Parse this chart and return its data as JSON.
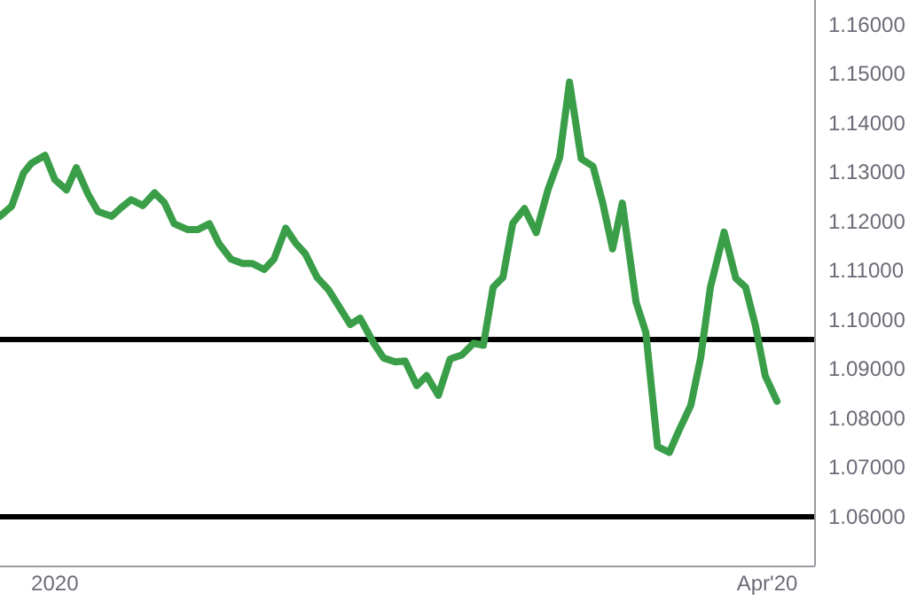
{
  "chart_data": {
    "type": "line",
    "xlim": [
      "2019-12-25",
      "2020-04-07"
    ],
    "ylim": [
      1.05,
      1.165
    ],
    "xticks": [
      {
        "value": "2020-01-01",
        "label": "2020"
      },
      {
        "value": "2020-04-01",
        "label": "Apr'20"
      }
    ],
    "yticks": [
      {
        "value": 1.06,
        "label": "1.06000"
      },
      {
        "value": 1.07,
        "label": "1.07000"
      },
      {
        "value": 1.08,
        "label": "1.08000"
      },
      {
        "value": 1.09,
        "label": "1.09000"
      },
      {
        "value": 1.1,
        "label": "1.10000"
      },
      {
        "value": 1.11,
        "label": "1.11000"
      },
      {
        "value": 1.12,
        "label": "1.12000"
      },
      {
        "value": 1.13,
        "label": "1.13000"
      },
      {
        "value": 1.14,
        "label": "1.14000"
      },
      {
        "value": 1.15,
        "label": "1.15000"
      },
      {
        "value": 1.16,
        "label": "1.16000"
      }
    ],
    "grid": false,
    "marker": "none",
    "line_style": "solid",
    "ref_lines": [
      {
        "axis": "y",
        "value": 1.096,
        "color": "#000000"
      },
      {
        "axis": "y",
        "value": 1.06,
        "color": "#000000"
      }
    ],
    "x": [
      "2019-12-25T00:00",
      "2019-12-26T12:00",
      "2019-12-28T00:00",
      "2019-12-29T00:00",
      "2019-12-30T18:00",
      "2020-01-01T00:00",
      "2020-01-02T12:00",
      "2020-01-03T18:00",
      "2020-01-05T06:00",
      "2020-01-06T12:00",
      "2020-01-08T06:00",
      "2020-01-09T12:00",
      "2020-01-10T18:00",
      "2020-01-12T06:00",
      "2020-01-13T18:00",
      "2020-01-15T00:00",
      "2020-01-16T06:00",
      "2020-01-18T00:00",
      "2020-01-19T06:00",
      "2020-01-20T18:00",
      "2020-01-22T00:00",
      "2020-01-23T12:00",
      "2020-01-25T00:00",
      "2020-01-26T06:00",
      "2020-01-27T18:00",
      "2020-01-29T00:00",
      "2020-01-30T12:00",
      "2020-01-31T18:00",
      "2020-02-02T00:00",
      "2020-02-03T12:00",
      "2020-02-05T00:00",
      "2020-02-07T18:00",
      "2020-02-09T00:00",
      "2020-02-10T18:00",
      "2020-02-12T00:00",
      "2020-02-13T12:00",
      "2020-02-14T18:00",
      "2020-02-16T06:00",
      "2020-02-17T12:00",
      "2020-02-19T00:00",
      "2020-02-20T12:00",
      "2020-02-22T00:00",
      "2020-02-23T12:00",
      "2020-02-24T18:00",
      "2020-02-26T00:00",
      "2020-02-27T06:00",
      "2020-02-28T12:00",
      "2020-03-01T00:00",
      "2020-03-02T12:00",
      "2020-03-04T00:00",
      "2020-03-05T12:00",
      "2020-03-06T18:00",
      "2020-03-08T06:00",
      "2020-03-09T18:00",
      "2020-03-11T00:00",
      "2020-03-12T06:00",
      "2020-03-13T12:00",
      "2020-03-15T06:00",
      "2020-03-16T12:00",
      "2020-03-18T00:00",
      "2020-03-19T12:00",
      "2020-03-20T18:00",
      "2020-03-22T06:00",
      "2020-03-23T12:00",
      "2020-03-24T18:00",
      "2020-03-26T12:00",
      "2020-03-28T00:00",
      "2020-03-29T06:00",
      "2020-03-30T12:00",
      "2020-03-31T18:00",
      "2020-04-02T06:00"
    ],
    "series": [
      {
        "color": "#3a9e48",
        "values": [
          1.121,
          1.1231,
          1.1298,
          1.1318,
          1.1334,
          1.1285,
          1.1264,
          1.1309,
          1.1255,
          1.122,
          1.121,
          1.1228,
          1.1244,
          1.1232,
          1.1258,
          1.1238,
          1.1195,
          1.1183,
          1.1183,
          1.1195,
          1.1154,
          1.1123,
          1.1114,
          1.1114,
          1.1102,
          1.1123,
          1.1186,
          1.1156,
          1.1134,
          1.1086,
          1.106,
          1.099,
          1.1003,
          1.0952,
          1.0922,
          1.0914,
          1.0916,
          1.0866,
          1.0886,
          1.0846,
          1.092,
          1.0928,
          1.0952,
          1.0948,
          1.1066,
          1.1086,
          1.1196,
          1.1226,
          1.1177,
          1.1264,
          1.133,
          1.1483,
          1.1327,
          1.1312,
          1.1237,
          1.1144,
          1.1237,
          1.1036,
          1.0974,
          1.0742,
          1.073,
          1.0775,
          1.0826,
          1.0922,
          1.1066,
          1.1178,
          1.1084,
          1.1066,
          1.0988,
          1.0886,
          1.0834
        ]
      }
    ]
  }
}
